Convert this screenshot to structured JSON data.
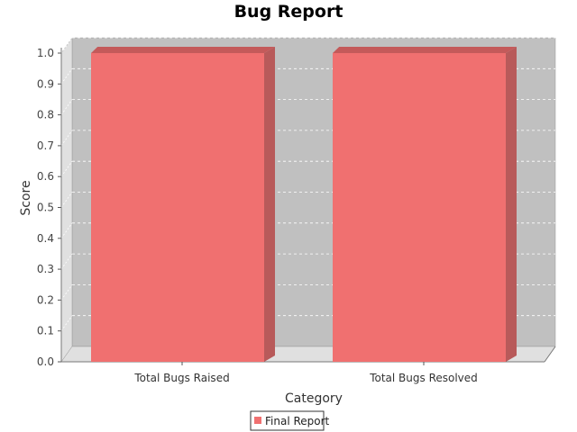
{
  "chart_data": {
    "type": "bar",
    "title": "Bug Report",
    "xlabel": "Category",
    "ylabel": "Score",
    "categories": [
      "Total Bugs Raised",
      "Total Bugs Resolved"
    ],
    "series": [
      {
        "name": "Final Report",
        "values": [
          1.0,
          1.0
        ]
      }
    ],
    "ylim": [
      0,
      1.0
    ],
    "yticks": [
      "0.0",
      "0.1",
      "0.2",
      "0.3",
      "0.4",
      "0.5",
      "0.6",
      "0.7",
      "0.8",
      "0.9",
      "1.0"
    ],
    "grid": true,
    "legend_position": "bottom",
    "colors": {
      "bar_front": "#f07070",
      "bar_side": "#b85a5a",
      "bar_top": "#c45a5a",
      "plot_bg": "#c0c0c0",
      "plot_wall": "#e0e0e0"
    }
  }
}
